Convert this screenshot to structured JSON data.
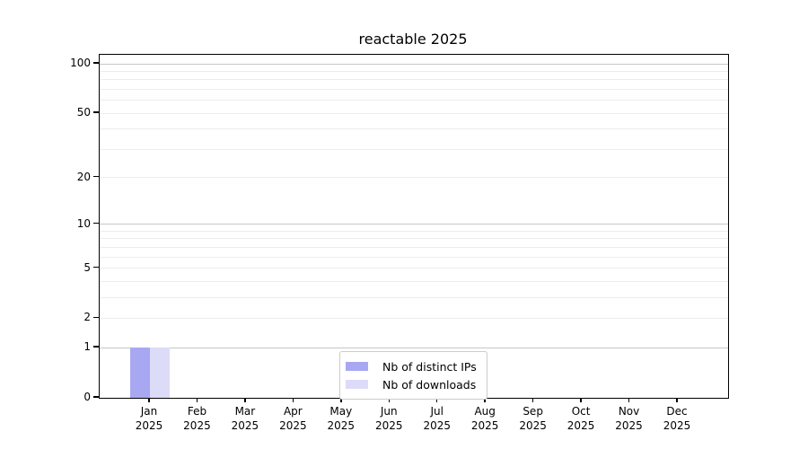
{
  "title": "reactable 2025",
  "legend": {
    "items": [
      {
        "label": "Nb of distinct IPs",
        "color": "#a8a8f2"
      },
      {
        "label": "Nb of downloads",
        "color": "#dcdcf8"
      }
    ]
  },
  "chart_data": {
    "type": "bar",
    "title": "reactable 2025",
    "categories": [
      {
        "month": "Jan",
        "year": "2025"
      },
      {
        "month": "Feb",
        "year": "2025"
      },
      {
        "month": "Mar",
        "year": "2025"
      },
      {
        "month": "Apr",
        "year": "2025"
      },
      {
        "month": "May",
        "year": "2025"
      },
      {
        "month": "Jun",
        "year": "2025"
      },
      {
        "month": "Jul",
        "year": "2025"
      },
      {
        "month": "Aug",
        "year": "2025"
      },
      {
        "month": "Sep",
        "year": "2025"
      },
      {
        "month": "Oct",
        "year": "2025"
      },
      {
        "month": "Nov",
        "year": "2025"
      },
      {
        "month": "Dec",
        "year": "2025"
      }
    ],
    "series": [
      {
        "name": "Nb of distinct IPs",
        "color": "#a8a8f2",
        "values": [
          1,
          0,
          0,
          0,
          0,
          0,
          0,
          0,
          0,
          0,
          0,
          0
        ]
      },
      {
        "name": "Nb of downloads",
        "color": "#dcdcf8",
        "values": [
          1,
          0,
          0,
          0,
          0,
          0,
          0,
          0,
          0,
          0,
          0,
          0
        ]
      }
    ],
    "xlabel": "",
    "ylabel": "",
    "y_scale": "log10(1+x)",
    "ylim": [
      0,
      113
    ],
    "y_major_ticks": [
      0,
      1,
      2,
      5,
      10,
      20,
      50,
      100
    ],
    "y_decade_gridlines": [
      1,
      10,
      100
    ],
    "y_light_gridlines": [
      2,
      3,
      4,
      5,
      6,
      7,
      8,
      9,
      20,
      30,
      40,
      50,
      60,
      70,
      80,
      90
    ],
    "grid": "horizontal",
    "legend_position": "lower-center",
    "colors": {
      "decade_grid": "#c6c6c6",
      "light_grid": "#ececec",
      "axis": "#000000",
      "background": "#ffffff"
    }
  }
}
